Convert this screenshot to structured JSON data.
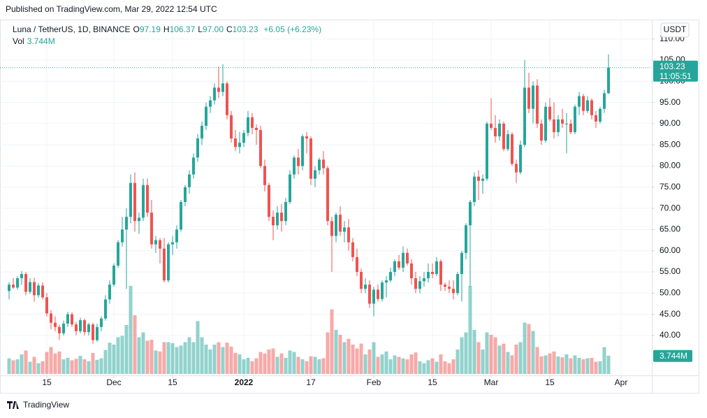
{
  "header": {
    "published": "Published on TradingView.com, Mar 29, 2022 12:54 UTC",
    "symbol": "Luna / TetherUS, 1D, BINANCE",
    "legend": [
      {
        "key": "O",
        "value": "97.19"
      },
      {
        "key": "H",
        "value": "106.37"
      },
      {
        "key": "L",
        "value": "97.00"
      },
      {
        "key": "C",
        "value": "103.23"
      }
    ],
    "change": "+6.05 (+6.23%)",
    "vol_key": "Vol",
    "vol_value": "3.744M",
    "currency": "USDT",
    "footer": "TradingView"
  },
  "chart_data": {
    "type": "candlestick",
    "up_color": "#26a69a",
    "down_color": "#ef5350",
    "grid": true,
    "ylim": [
      30.58,
      114.57
    ],
    "yticks": [
      {
        "value": 40,
        "label": "40.00"
      },
      {
        "value": 45,
        "label": "45.00"
      },
      {
        "value": 50,
        "label": "50.00"
      },
      {
        "value": 55,
        "label": "55.00"
      },
      {
        "value": 60,
        "label": "60.00"
      },
      {
        "value": 65,
        "label": "65.00"
      },
      {
        "value": 70,
        "label": "70.00"
      },
      {
        "value": 75,
        "label": "75.00"
      },
      {
        "value": 80,
        "label": "80.00"
      },
      {
        "value": 85,
        "label": "85.00"
      },
      {
        "value": 90,
        "label": "90.00"
      },
      {
        "value": 95,
        "label": "95.00"
      },
      {
        "value": 100,
        "label": "100.00"
      },
      {
        "value": 105,
        "label": "105.00"
      },
      {
        "value": 110,
        "label": "110.00"
      }
    ],
    "xticks": [
      {
        "value": 9,
        "label": "15"
      },
      {
        "value": 25,
        "label": "Dec"
      },
      {
        "value": 39,
        "label": "15"
      },
      {
        "value": 56,
        "label": "2022"
      },
      {
        "value": 72,
        "label": "17"
      },
      {
        "value": 87,
        "label": "Feb"
      },
      {
        "value": 101,
        "label": "15"
      },
      {
        "value": 115,
        "label": "Mar"
      },
      {
        "value": 129,
        "label": "15"
      },
      {
        "value": 146,
        "label": "Apr"
      }
    ],
    "last_price": {
      "value": 103.23,
      "label": "103.23",
      "countdown": "11:05:51"
    },
    "last_volume": {
      "value": 3.744,
      "label": "3.744M"
    },
    "candles": [
      [
        50.5,
        52.6,
        48.5,
        52.0,
        3.2
      ],
      [
        52.0,
        53.5,
        51.0,
        51.3,
        2.8
      ],
      [
        51.3,
        54.0,
        50.8,
        53.5,
        3.0
      ],
      [
        53.5,
        55.2,
        52.0,
        54.5,
        4.0
      ],
      [
        54.5,
        55.0,
        49.5,
        50.3,
        4.8
      ],
      [
        50.3,
        53.5,
        49.8,
        52.6,
        2.5
      ],
      [
        52.6,
        53.6,
        48.0,
        49.5,
        3.5
      ],
      [
        49.5,
        52.4,
        48.9,
        51.8,
        2.2
      ],
      [
        51.8,
        52.5,
        48.5,
        49.0,
        2.6
      ],
      [
        49.0,
        50.0,
        44.5,
        45.2,
        4.5
      ],
      [
        45.2,
        46.0,
        41.5,
        43.0,
        5.5
      ],
      [
        43.0,
        44.5,
        41.0,
        42.0,
        4.2
      ],
      [
        42.0,
        42.5,
        39.0,
        40.5,
        4.6
      ],
      [
        40.5,
        43.5,
        40.0,
        42.8,
        3.0
      ],
      [
        42.8,
        45.6,
        42.0,
        45.0,
        3.3
      ],
      [
        45.0,
        45.5,
        42.0,
        42.6,
        2.8
      ],
      [
        42.6,
        43.2,
        40.0,
        41.0,
        3.1
      ],
      [
        41.0,
        44.2,
        40.5,
        43.6,
        3.7
      ],
      [
        43.6,
        44.0,
        40.0,
        40.8,
        3.0
      ],
      [
        40.8,
        43.0,
        40.0,
        42.6,
        2.6
      ],
      [
        42.6,
        43.0,
        38.0,
        38.9,
        4.3
      ],
      [
        38.9,
        42.8,
        38.5,
        42.0,
        2.9
      ],
      [
        42.0,
        44.5,
        41.0,
        44.0,
        3.2
      ],
      [
        44.0,
        49.5,
        43.5,
        48.5,
        4.9
      ],
      [
        48.5,
        53.0,
        47.5,
        52.0,
        6.4
      ],
      [
        52.0,
        57.0,
        51.5,
        56.5,
        6.0
      ],
      [
        56.5,
        62.5,
        56.0,
        62.0,
        7.5
      ],
      [
        62.0,
        68.0,
        61.0,
        65.0,
        7.8
      ],
      [
        65.0,
        70.0,
        51.0,
        68.0,
        10.0
      ],
      [
        68.0,
        78.0,
        66.5,
        76.0,
        18.0
      ],
      [
        76.0,
        78.5,
        64.5,
        67.0,
        12.0
      ],
      [
        67.0,
        69.0,
        64.0,
        67.8,
        7.5
      ],
      [
        67.8,
        77.0,
        67.0,
        75.5,
        8.5
      ],
      [
        75.5,
        77.0,
        68.0,
        69.0,
        6.8
      ],
      [
        69.0,
        72.0,
        60.5,
        61.5,
        7.0
      ],
      [
        61.5,
        63.5,
        59.5,
        62.5,
        4.8
      ],
      [
        62.5,
        63.0,
        57.0,
        60.5,
        4.6
      ],
      [
        60.5,
        63.0,
        52.5,
        53.0,
        6.5
      ],
      [
        53.0,
        62.0,
        52.5,
        61.5,
        6.5
      ],
      [
        61.5,
        63.5,
        59.0,
        62.0,
        6.3
      ],
      [
        62.0,
        66.0,
        60.5,
        65.0,
        5.5
      ],
      [
        65.0,
        72.0,
        64.5,
        71.5,
        5.8
      ],
      [
        71.5,
        75.5,
        70.5,
        75.0,
        6.5
      ],
      [
        75.0,
        79.0,
        73.5,
        78.0,
        7.5
      ],
      [
        78.0,
        83.0,
        77.0,
        82.0,
        6.5
      ],
      [
        82.0,
        87.5,
        81.0,
        86.5,
        10.8
      ],
      [
        86.5,
        90.5,
        85.0,
        89.5,
        7.5
      ],
      [
        89.5,
        95.0,
        88.5,
        94.0,
        6.0
      ],
      [
        94.0,
        96.5,
        92.5,
        95.5,
        5.0
      ],
      [
        95.5,
        99.5,
        94.5,
        98.5,
        6.0
      ],
      [
        98.5,
        103.5,
        96.0,
        97.5,
        6.5
      ],
      [
        97.5,
        104.0,
        96.5,
        99.5,
        5.5
      ],
      [
        99.5,
        100.0,
        91.0,
        92.0,
        6.4
      ],
      [
        92.0,
        93.0,
        85.5,
        86.5,
        5.6
      ],
      [
        86.5,
        88.5,
        83.5,
        84.5,
        4.3
      ],
      [
        84.5,
        88.0,
        83.0,
        85.5,
        4.0
      ],
      [
        85.5,
        88.5,
        84.5,
        87.8,
        3.0
      ],
      [
        87.8,
        93.0,
        87.0,
        91.5,
        3.3
      ],
      [
        91.5,
        92.5,
        87.5,
        89.0,
        2.6
      ],
      [
        89.0,
        89.8,
        85.0,
        88.5,
        3.2
      ],
      [
        88.5,
        89.5,
        79.5,
        80.0,
        4.5
      ],
      [
        80.0,
        81.5,
        74.0,
        75.5,
        4.2
      ],
      [
        75.5,
        76.0,
        67.0,
        68.0,
        5.0
      ],
      [
        68.0,
        69.5,
        62.5,
        66.0,
        5.2
      ],
      [
        66.0,
        70.5,
        65.0,
        69.0,
        3.5
      ],
      [
        69.0,
        71.0,
        64.5,
        67.0,
        4.2
      ],
      [
        67.0,
        72.5,
        66.0,
        71.5,
        3.3
      ],
      [
        71.5,
        79.0,
        71.0,
        78.0,
        4.8
      ],
      [
        78.0,
        82.5,
        77.0,
        82.0,
        4.5
      ],
      [
        82.0,
        84.0,
        78.0,
        80.0,
        3.5
      ],
      [
        80.0,
        87.5,
        79.0,
        87.0,
        3.0
      ],
      [
        87.0,
        88.0,
        83.0,
        86.5,
        2.6
      ],
      [
        86.5,
        87.0,
        75.5,
        77.0,
        3.6
      ],
      [
        77.0,
        80.0,
        75.0,
        79.0,
        3.5
      ],
      [
        79.0,
        82.0,
        78.0,
        81.5,
        3.0
      ],
      [
        81.5,
        83.5,
        78.0,
        79.5,
        3.2
      ],
      [
        79.5,
        80.0,
        66.0,
        67.0,
        8.5
      ],
      [
        67.0,
        68.0,
        55.0,
        63.5,
        13.2
      ],
      [
        63.5,
        69.0,
        62.0,
        68.5,
        9.0
      ],
      [
        68.5,
        70.5,
        63.5,
        64.5,
        8.0
      ],
      [
        64.5,
        67.0,
        62.0,
        65.5,
        6.5
      ],
      [
        65.5,
        67.5,
        60.0,
        62.0,
        7.2
      ],
      [
        62.0,
        63.0,
        57.5,
        58.5,
        6.0
      ],
      [
        58.5,
        60.5,
        54.0,
        55.0,
        5.2
      ],
      [
        55.0,
        55.8,
        50.0,
        51.0,
        6.2
      ],
      [
        51.0,
        53.5,
        50.0,
        52.0,
        4.0
      ],
      [
        52.0,
        53.0,
        46.5,
        47.5,
        5.0
      ],
      [
        47.5,
        51.5,
        44.5,
        50.8,
        6.5
      ],
      [
        50.8,
        52.0,
        48.0,
        48.6,
        3.5
      ],
      [
        48.6,
        53.0,
        48.0,
        52.5,
        4.0
      ],
      [
        52.5,
        54.0,
        49.0,
        53.0,
        4.6
      ],
      [
        53.0,
        56.0,
        52.5,
        55.0,
        3.0
      ],
      [
        55.0,
        58.0,
        54.0,
        57.5,
        3.8
      ],
      [
        57.5,
        59.0,
        55.5,
        56.0,
        3.5
      ],
      [
        56.0,
        61.0,
        55.0,
        59.5,
        3.2
      ],
      [
        59.5,
        60.5,
        56.5,
        57.0,
        3.0
      ],
      [
        57.0,
        58.0,
        52.0,
        53.5,
        4.0
      ],
      [
        53.5,
        55.0,
        50.0,
        51.0,
        4.4
      ],
      [
        51.0,
        54.0,
        50.0,
        52.8,
        2.6
      ],
      [
        52.8,
        55.0,
        51.5,
        53.5,
        2.2
      ],
      [
        53.5,
        57.0,
        52.5,
        55.0,
        2.8
      ],
      [
        55.0,
        57.0,
        53.5,
        54.5,
        3.2
      ],
      [
        54.5,
        58.5,
        54.0,
        57.5,
        2.5
      ],
      [
        57.5,
        58.0,
        50.5,
        52.0,
        4.0
      ],
      [
        52.0,
        52.5,
        50.5,
        51.5,
        2.6
      ],
      [
        51.5,
        53.0,
        50.0,
        51.0,
        2.2
      ],
      [
        51.0,
        53.0,
        48.5,
        50.0,
        3.0
      ],
      [
        50.0,
        55.0,
        49.5,
        54.5,
        5.0
      ],
      [
        54.5,
        60.0,
        48.0,
        59.5,
        7.5
      ],
      [
        59.5,
        66.5,
        58.0,
        66.0,
        8.5
      ],
      [
        66.0,
        72.0,
        51.5,
        71.5,
        18.0
      ],
      [
        71.5,
        78.5,
        70.5,
        77.5,
        9.0
      ],
      [
        77.5,
        79.0,
        72.0,
        76.5,
        6.5
      ],
      [
        76.5,
        78.0,
        73.5,
        77.0,
        5.0
      ],
      [
        77.0,
        90.5,
        76.5,
        90.0,
        8.5
      ],
      [
        90.0,
        96.0,
        88.5,
        89.0,
        8.0
      ],
      [
        89.0,
        92.0,
        85.5,
        87.0,
        7.5
      ],
      [
        87.0,
        91.0,
        86.0,
        90.0,
        5.8
      ],
      [
        90.0,
        90.5,
        83.5,
        84.0,
        6.2
      ],
      [
        84.0,
        88.5,
        83.5,
        87.5,
        4.5
      ],
      [
        87.5,
        88.0,
        80.0,
        80.5,
        3.8
      ],
      [
        80.5,
        81.5,
        76.0,
        78.5,
        6.0
      ],
      [
        78.5,
        86.0,
        78.0,
        85.0,
        6.5
      ],
      [
        85.0,
        105.0,
        84.5,
        98.5,
        10.5
      ],
      [
        98.5,
        102.0,
        92.5,
        93.5,
        10.2
      ],
      [
        93.5,
        100.0,
        90.0,
        99.0,
        8.8
      ],
      [
        99.0,
        100.5,
        89.0,
        90.0,
        5.5
      ],
      [
        90.0,
        91.0,
        85.0,
        86.0,
        3.6
      ],
      [
        86.0,
        95.0,
        85.5,
        94.0,
        3.8
      ],
      [
        94.0,
        96.0,
        90.5,
        91.0,
        4.2
      ],
      [
        91.0,
        95.0,
        86.5,
        88.0,
        4.6
      ],
      [
        88.0,
        92.0,
        87.0,
        91.0,
        3.6
      ],
      [
        91.0,
        93.5,
        89.0,
        90.0,
        3.4
      ],
      [
        90.0,
        92.5,
        83.0,
        90.0,
        4.0
      ],
      [
        90.0,
        91.0,
        87.5,
        88.0,
        3.2
      ],
      [
        88.0,
        94.5,
        87.5,
        94.0,
        3.8
      ],
      [
        94.0,
        97.5,
        92.0,
        96.5,
        3.3
      ],
      [
        96.5,
        97.0,
        92.0,
        93.0,
        3.0
      ],
      [
        93.0,
        96.5,
        92.5,
        95.5,
        3.2
      ],
      [
        95.5,
        96.0,
        91.0,
        92.0,
        3.3
      ],
      [
        92.0,
        93.0,
        89.0,
        90.5,
        2.5
      ],
      [
        90.5,
        94.0,
        90.0,
        93.5,
        2.6
      ],
      [
        93.5,
        98.0,
        92.5,
        97.19,
        5.5
      ],
      [
        97.19,
        106.37,
        97.0,
        103.23,
        3.744
      ]
    ]
  }
}
